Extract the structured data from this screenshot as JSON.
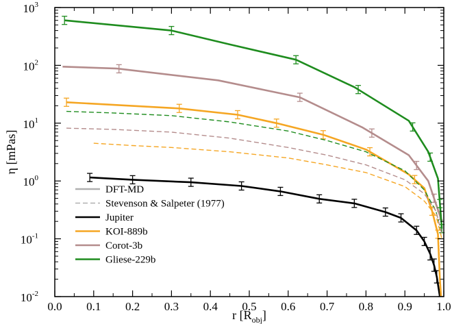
{
  "chart_data": {
    "type": "line",
    "title": "",
    "xlabel": {
      "main": "r [R",
      "sub": "obj",
      "close": "]"
    },
    "ylabel": "η [mPas]",
    "x_scale": "linear",
    "y_scale": "log",
    "xlim": [
      0.0,
      1.0
    ],
    "ylim": [
      0.01,
      1000
    ],
    "x_ticks": [
      "0.0",
      "0.1",
      "0.2",
      "0.3",
      "0.4",
      "0.5",
      "0.6",
      "0.7",
      "0.8",
      "0.9",
      "1.0"
    ],
    "y_ticks": [
      {
        "value": 0.01,
        "base": "10",
        "exp": "-2"
      },
      {
        "value": 0.1,
        "base": "10",
        "exp": "-1"
      },
      {
        "value": 1,
        "base": "10",
        "exp": "0"
      },
      {
        "value": 10,
        "base": "10",
        "exp": "1"
      },
      {
        "value": 100,
        "base": "10",
        "exp": "2"
      },
      {
        "value": 1000,
        "base": "10",
        "exp": "3"
      }
    ],
    "grid": false,
    "legend_placement": "bottom-left",
    "legend": [
      {
        "label": "DFT-MD",
        "color": "#b0b0b0",
        "style": "solid"
      },
      {
        "label": "Stevenson & Salpeter (1977)",
        "color": "#b0b0b0",
        "style": "dashed"
      },
      {
        "label": "Jupiter",
        "color": "#000000",
        "style": "solid"
      },
      {
        "label": "KOI-889b",
        "color": "#f5a623",
        "style": "solid"
      },
      {
        "label": "Corot-3b",
        "color": "#b48c8c",
        "style": "solid"
      },
      {
        "label": "Gliese-229b",
        "color": "#1e8c1e",
        "style": "solid"
      }
    ],
    "series": [
      {
        "id": "jupiter-dft",
        "color": "#000000",
        "style": "solid",
        "x": [
          0.09,
          0.2,
          0.35,
          0.48,
          0.58,
          0.68,
          0.77,
          0.85,
          0.89,
          0.93,
          0.95,
          0.965,
          0.975,
          0.982,
          0.99
        ],
        "y": [
          1.15,
          1.05,
          0.95,
          0.82,
          0.66,
          0.49,
          0.41,
          0.29,
          0.23,
          0.14,
          0.09,
          0.055,
          0.035,
          0.022,
          0.01
        ],
        "errorbars": [
          0.09,
          0.2,
          0.35,
          0.48,
          0.58,
          0.68,
          0.77,
          0.85,
          0.89,
          0.93,
          0.95,
          0.965,
          0.975,
          0.982
        ]
      },
      {
        "id": "koi889b-dft",
        "color": "#f5a623",
        "style": "solid",
        "x": [
          0.03,
          0.32,
          0.47,
          0.57,
          0.69,
          0.8,
          0.91,
          0.95,
          0.97,
          0.985,
          0.99,
          0.993
        ],
        "y": [
          23,
          18,
          14,
          10,
          6.3,
          3.5,
          1.3,
          0.75,
          0.3,
          0.12,
          0.02,
          0.01
        ],
        "errorbars": [
          0.03,
          0.32,
          0.47,
          0.57,
          0.69,
          0.81,
          0.925,
          0.97,
          0.985
        ]
      },
      {
        "id": "corot3b-dft",
        "color": "#b48c8c",
        "style": "solid",
        "x": [
          0.02,
          0.16,
          0.42,
          0.63,
          0.79,
          0.91,
          0.96,
          0.98,
          0.995
        ],
        "y": [
          95,
          88,
          55,
          28,
          8.5,
          2.8,
          1.0,
          0.4,
          0.2
        ],
        "errorbars": [
          0.165,
          0.63,
          0.815,
          0.93,
          0.975,
          0.99
        ]
      },
      {
        "id": "gliese229b-dft",
        "color": "#1e8c1e",
        "style": "solid",
        "x": [
          0.025,
          0.3,
          0.45,
          0.62,
          0.77,
          0.91,
          0.96,
          0.985,
          0.995
        ],
        "y": [
          600,
          400,
          230,
          125,
          42,
          11,
          3.2,
          1.1,
          0.15
        ],
        "errorbars": [
          0.025,
          0.3,
          0.62,
          0.78,
          0.92,
          0.965,
          0.99,
          0.995
        ]
      },
      {
        "id": "gliese229b-ss",
        "color": "#1e8c1e",
        "style": "dashed",
        "x": [
          0.03,
          0.15,
          0.3,
          0.45,
          0.6,
          0.7,
          0.8,
          0.9,
          0.95,
          0.98,
          0.995
        ],
        "y": [
          16,
          15,
          13.5,
          10.5,
          7.3,
          5.0,
          3.2,
          1.5,
          0.7,
          0.3,
          0.12
        ]
      },
      {
        "id": "corot3b-ss",
        "color": "#b48c8c",
        "style": "dashed",
        "x": [
          0.03,
          0.15,
          0.3,
          0.45,
          0.6,
          0.7,
          0.8,
          0.9,
          0.95,
          0.98,
          0.995
        ],
        "y": [
          8.2,
          7.8,
          7.0,
          5.5,
          3.8,
          2.8,
          1.9,
          1.05,
          0.6,
          0.3,
          0.12
        ]
      },
      {
        "id": "koi889b-ss",
        "color": "#f5a623",
        "style": "dashed",
        "x": [
          0.1,
          0.2,
          0.3,
          0.45,
          0.6,
          0.7,
          0.8,
          0.9,
          0.95,
          0.98,
          0.995
        ],
        "y": [
          4.5,
          4.1,
          3.8,
          3.2,
          2.5,
          1.9,
          1.4,
          0.8,
          0.45,
          0.25,
          0.1
        ]
      }
    ]
  }
}
